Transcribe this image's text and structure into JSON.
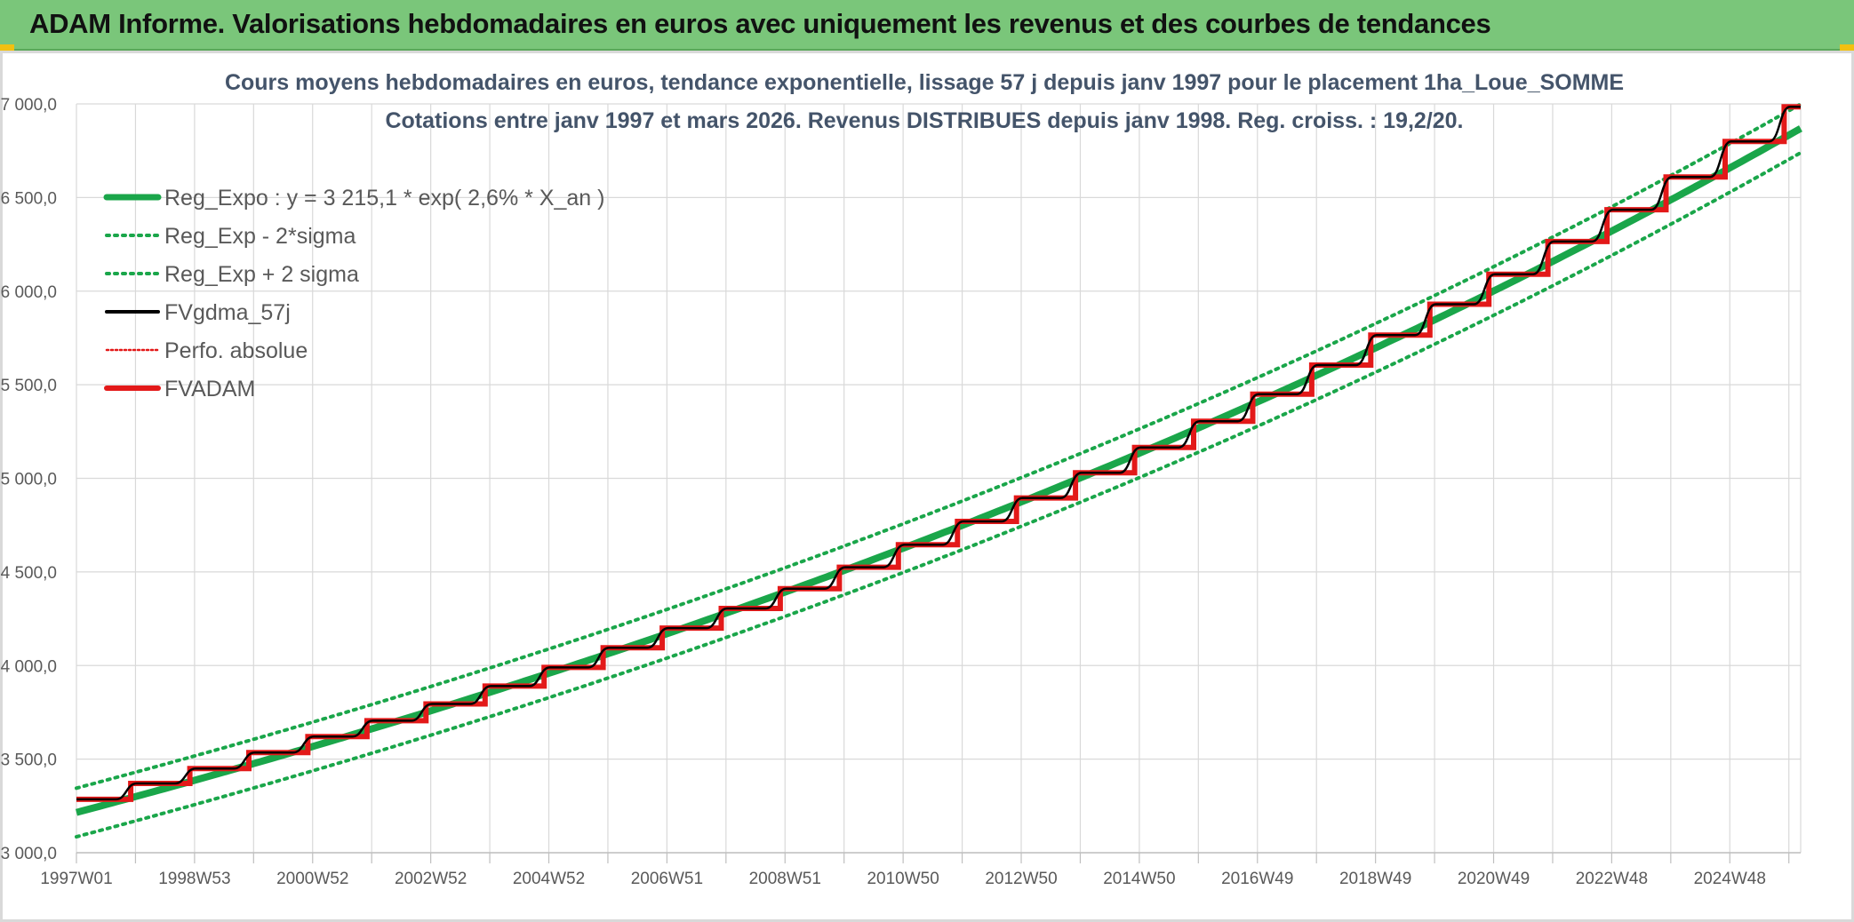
{
  "header": {
    "title": "ADAM Informe. Valorisations hebdomadaires en euros avec uniquement les revenus et des courbes de tendances"
  },
  "colors": {
    "banner": "#7ac67a",
    "reg_expo": "#1aa64a",
    "fvgdma": "#000000",
    "fvadam": "#e31919",
    "grid": "#d9d9d9"
  },
  "chart_data": {
    "type": "line",
    "title": "Cours moyens hebdomadaires en euros, tendance exponentielle, lissage 57 j depuis janv 1997 pour le placement 1ha_Loue_SOMME",
    "subtitle": "Cotations entre janv 1997 et mars 2026. Revenus DISTRIBUES depuis janv 1998. Reg. croiss. : 19,2/20.",
    "x_start_year": 1997,
    "x_end_year": 2026.2,
    "ylim": [
      3000,
      7000
    ],
    "y_ticks": [
      "3 000,0",
      "3 500,0",
      "4 000,0",
      "4 500,0",
      "5 000,0",
      "5 500,0",
      "6 000,0",
      "6 500,0",
      "7 000,0"
    ],
    "y_tick_values": [
      3000,
      3500,
      4000,
      4500,
      5000,
      5500,
      6000,
      6500,
      7000
    ],
    "x_tick_labels": [
      "1997W01",
      "1998W53",
      "2000W52",
      "2002W52",
      "2004W52",
      "2006W51",
      "2008W51",
      "2010W50",
      "2012W50",
      "2014W50",
      "2016W49",
      "2018W49",
      "2020W49",
      "2022W48",
      "2024W48"
    ],
    "x_tick_years": [
      1997,
      1999,
      2001,
      2003,
      2005,
      2007,
      2009,
      2011,
      2013,
      2015,
      2017,
      2019,
      2021,
      2023,
      2025
    ],
    "grid": true,
    "legend_position": "top-left",
    "regression": {
      "a": 3215.1,
      "rate_label": "2,6%",
      "sigma_offset": 130
    },
    "step_levels": [
      {
        "year": 1997,
        "value": 3285
      },
      {
        "year": 1998,
        "value": 3370
      },
      {
        "year": 1999,
        "value": 3450
      },
      {
        "year": 2000,
        "value": 3535
      },
      {
        "year": 2001,
        "value": 3620
      },
      {
        "year": 2002,
        "value": 3705
      },
      {
        "year": 2003,
        "value": 3795
      },
      {
        "year": 2004,
        "value": 3890
      },
      {
        "year": 2005,
        "value": 3990
      },
      {
        "year": 2006,
        "value": 4095
      },
      {
        "year": 2007,
        "value": 4200
      },
      {
        "year": 2008,
        "value": 4305
      },
      {
        "year": 2009,
        "value": 4410
      },
      {
        "year": 2010,
        "value": 4525
      },
      {
        "year": 2011,
        "value": 4645
      },
      {
        "year": 2012,
        "value": 4770
      },
      {
        "year": 2013,
        "value": 4895
      },
      {
        "year": 2014,
        "value": 5030
      },
      {
        "year": 2015,
        "value": 5165
      },
      {
        "year": 2016,
        "value": 5305
      },
      {
        "year": 2017,
        "value": 5450
      },
      {
        "year": 2018,
        "value": 5605
      },
      {
        "year": 2019,
        "value": 5765
      },
      {
        "year": 2020,
        "value": 5930
      },
      {
        "year": 2021,
        "value": 6090
      },
      {
        "year": 2022,
        "value": 6265
      },
      {
        "year": 2023,
        "value": 6435
      },
      {
        "year": 2024,
        "value": 6610
      },
      {
        "year": 2025,
        "value": 6800
      },
      {
        "year": 2026,
        "value": 6985
      }
    ],
    "series": [
      {
        "name": "Reg_Expo : y = 3 215,1 * exp( 2,6% *  X_an )",
        "key": "reg"
      },
      {
        "name": "Reg_Exp - 2*sigma",
        "key": "reg_minus"
      },
      {
        "name": "Reg_Exp + 2 sigma",
        "key": "reg_plus"
      },
      {
        "name": "FVgdma_57j",
        "key": "fvgdma"
      },
      {
        "name": "Perfo. absolue",
        "key": "perfo"
      },
      {
        "name": "FVADAM",
        "key": "fvadam"
      }
    ]
  }
}
